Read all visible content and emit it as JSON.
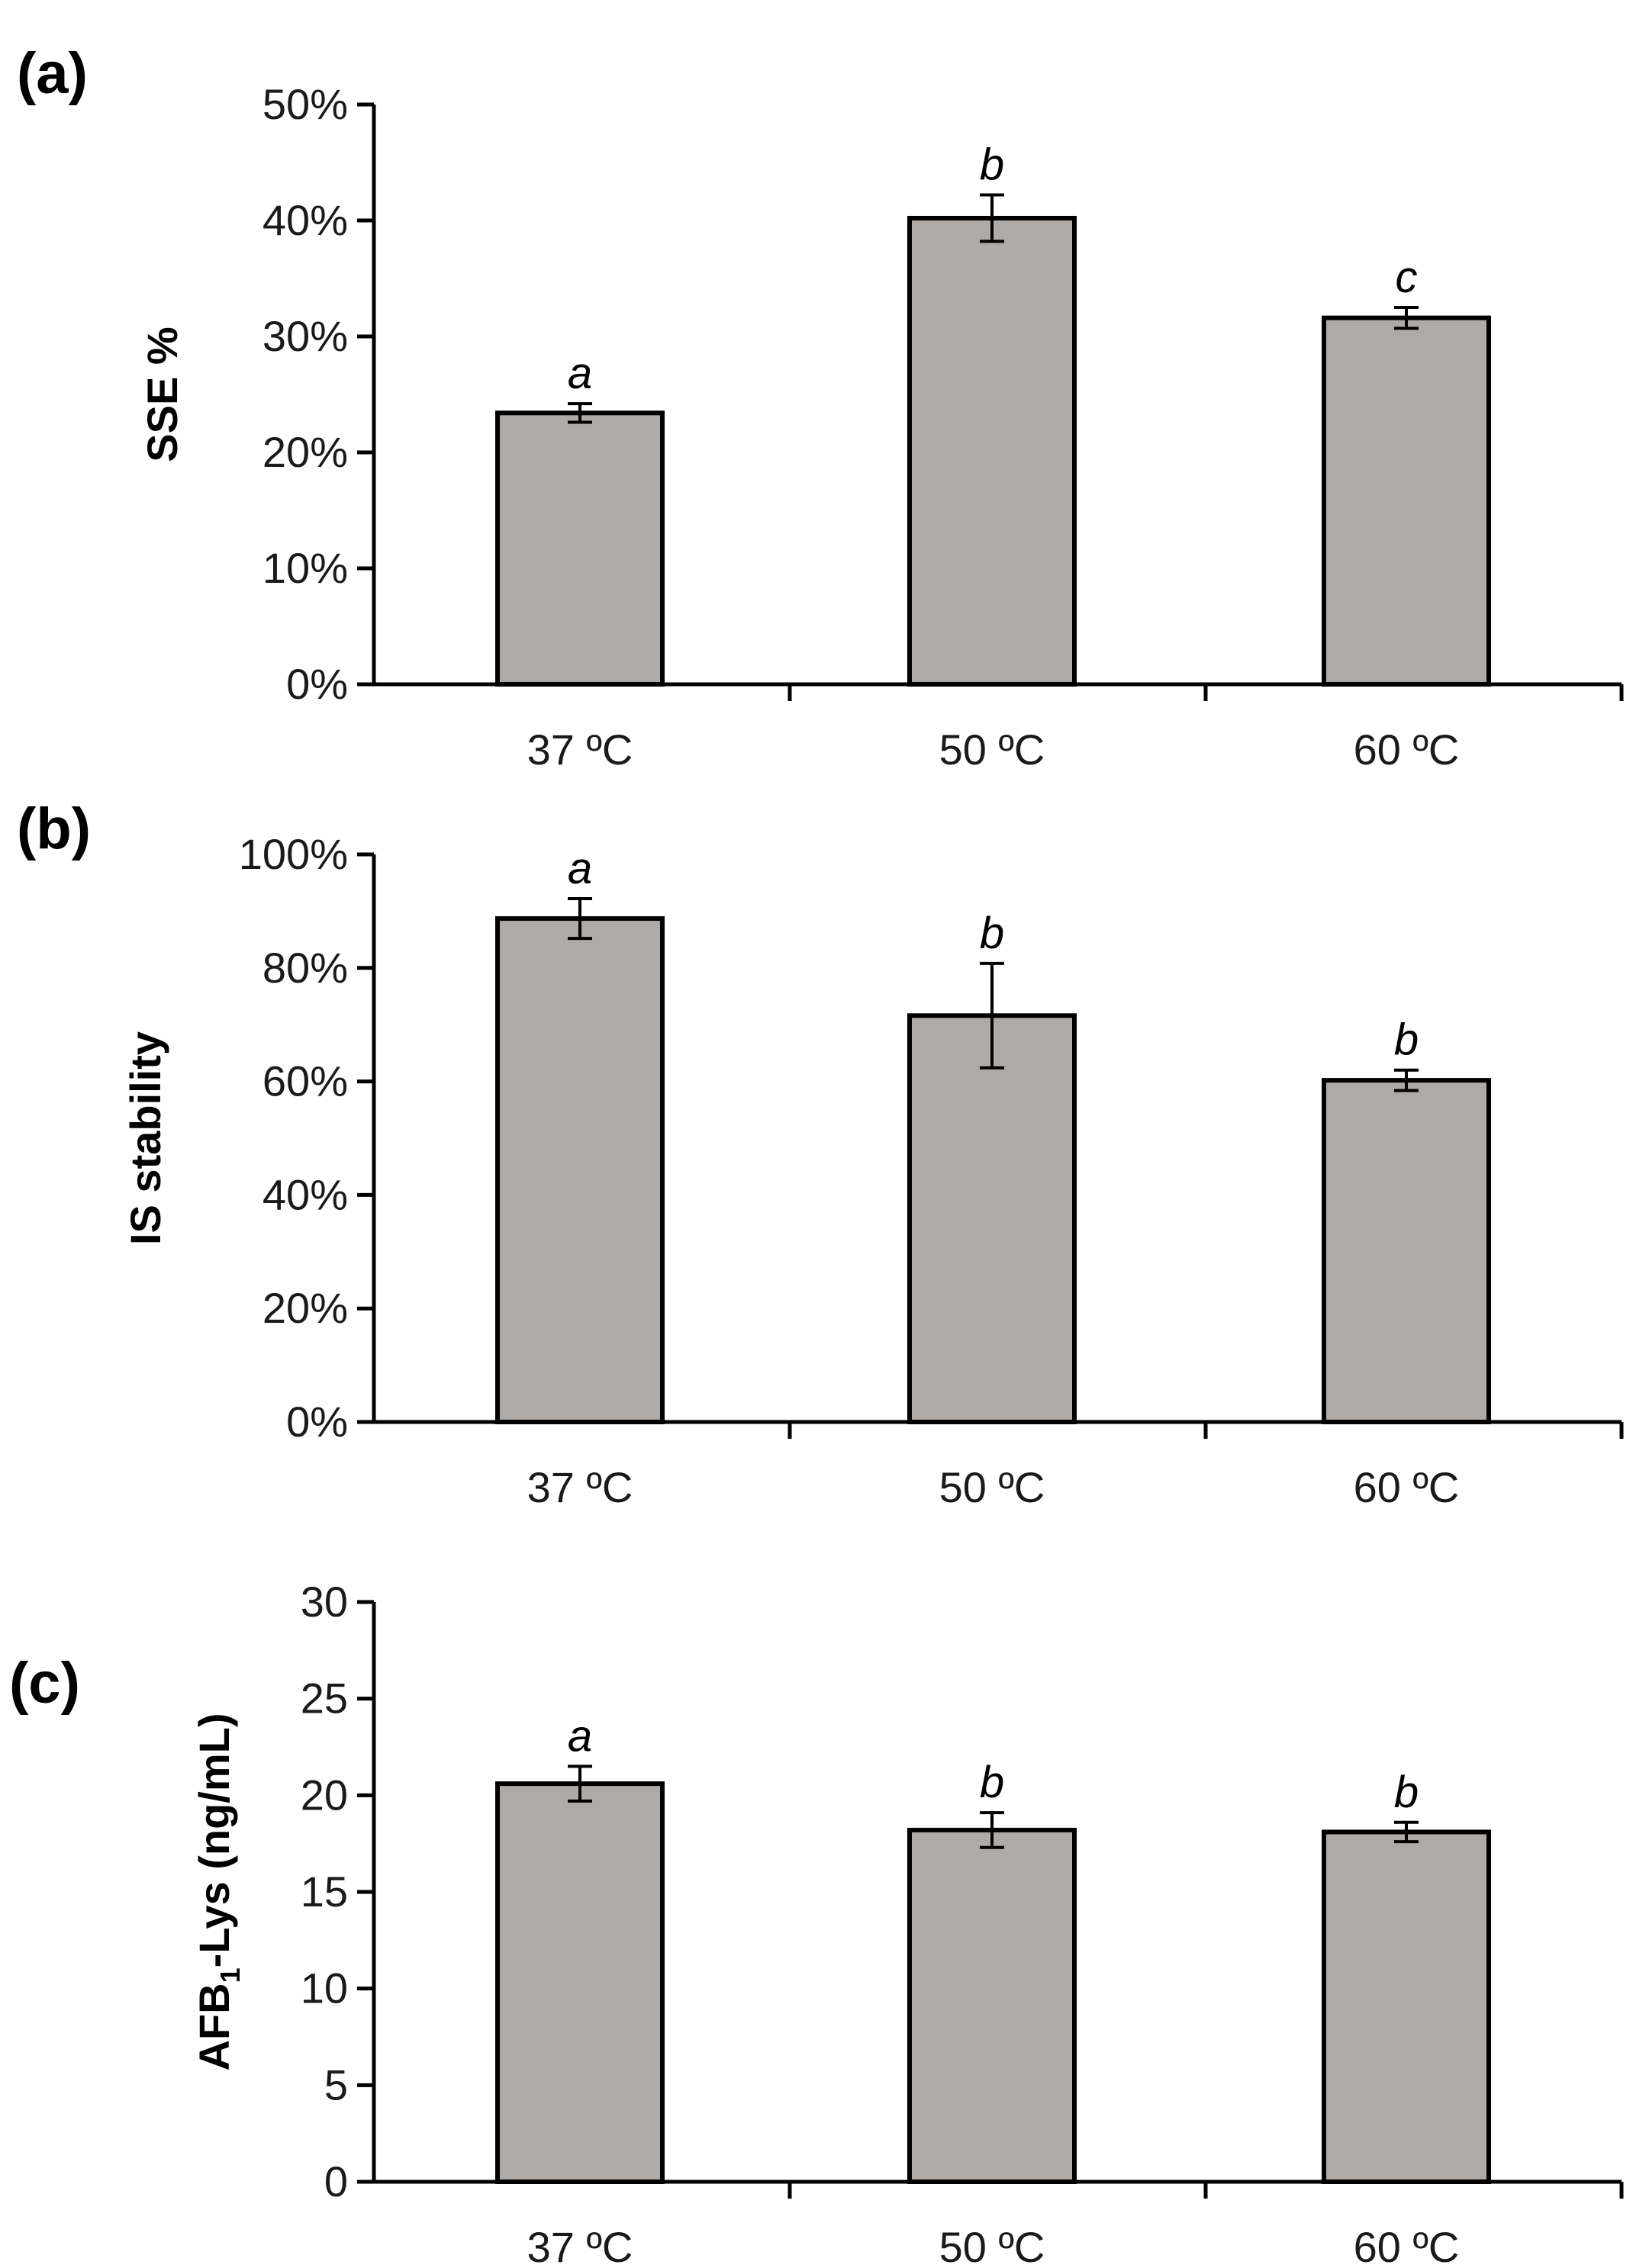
{
  "colors": {
    "bar_fill": "#aeaaa8",
    "axis": "#000000",
    "background": "#ffffff"
  },
  "chart_data": [
    {
      "panel": "(a)",
      "type": "bar",
      "title": "",
      "xlabel": "",
      "ylabel": "SSE %",
      "ylabel_sub": "",
      "ylabel_suffix": "",
      "categories": [
        "37 ºC",
        "50 ºC",
        "60 ºC"
      ],
      "values": [
        23.4,
        40.2,
        31.6
      ],
      "errors": [
        0.8,
        2.0,
        0.9
      ],
      "significance": [
        "a",
        "b",
        "c"
      ],
      "ylim": [
        0,
        50
      ],
      "yticks": [
        0,
        10,
        20,
        30,
        40,
        50
      ],
      "ytick_labels": [
        "0%",
        "10%",
        "20%",
        "30%",
        "40%",
        "50%"
      ],
      "grid": false
    },
    {
      "panel": "(b)",
      "type": "bar",
      "title": "",
      "xlabel": "",
      "ylabel": "IS stability",
      "ylabel_sub": "",
      "ylabel_suffix": "",
      "categories": [
        "37 ºC",
        "50 ºC",
        "60 ºC"
      ],
      "values": [
        88.7,
        71.6,
        60.2
      ],
      "errors": [
        3.5,
        9.2,
        1.8
      ],
      "significance": [
        "a",
        "b",
        "b"
      ],
      "ylim": [
        0,
        100
      ],
      "yticks": [
        0,
        20,
        40,
        60,
        80,
        100
      ],
      "ytick_labels": [
        "0%",
        "20%",
        "40%",
        "60%",
        "80%",
        "100%"
      ],
      "grid": false
    },
    {
      "panel": "(c)",
      "type": "bar",
      "title": "",
      "xlabel": "",
      "ylabel": "AFB",
      "ylabel_sub": "1",
      "ylabel_suffix": "-Lys (ng/mL)",
      "categories": [
        "37 ºC",
        "50 ºC",
        "60 ºC"
      ],
      "values": [
        20.6,
        18.2,
        18.1
      ],
      "errors": [
        0.9,
        0.9,
        0.5
      ],
      "significance": [
        "a",
        "b",
        "b"
      ],
      "ylim": [
        0,
        30
      ],
      "yticks": [
        0,
        5,
        10,
        15,
        20,
        25,
        30
      ],
      "ytick_labels": [
        "0",
        "5",
        "10",
        "15",
        "20",
        "25",
        "30"
      ],
      "grid": false
    }
  ]
}
